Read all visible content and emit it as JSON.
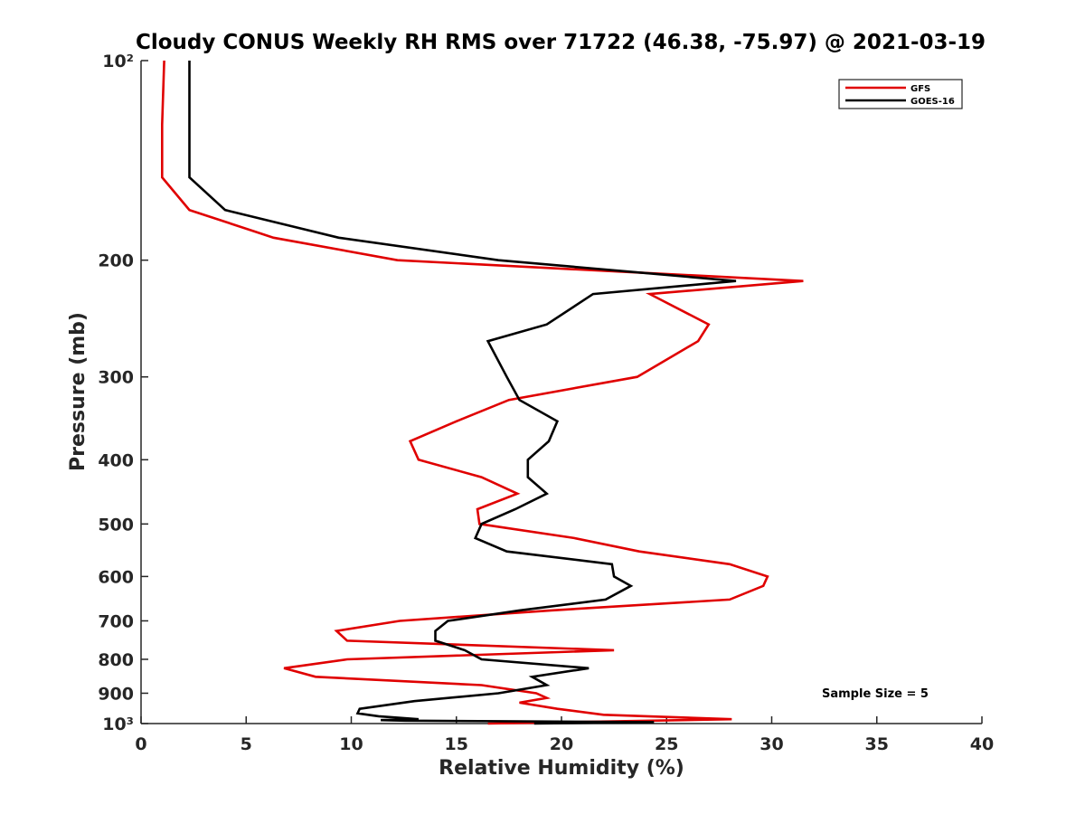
{
  "chart_data": {
    "type": "line",
    "title": "Cloudy CONUS Weekly RH RMS over 71722 (46.38, -75.97) @ 2021-03-19",
    "xlabel": "Relative Humidity (%)",
    "ylabel": "Pressure (mb)",
    "xlim": [
      0,
      40
    ],
    "ylim": [
      100,
      1000
    ],
    "yscale": "log",
    "yreversed": true,
    "grid": false,
    "x_ticks": [
      0,
      5,
      10,
      15,
      20,
      25,
      30,
      35,
      40
    ],
    "x_tick_labels": [
      "0",
      "5",
      "10",
      "15",
      "20",
      "25",
      "30",
      "35",
      "40"
    ],
    "y_ticks": [
      100,
      200,
      300,
      400,
      500,
      600,
      700,
      800,
      900,
      1000
    ],
    "y_tick_labels": [
      "10²",
      "200",
      "300",
      "400",
      "500",
      "600",
      "700",
      "800",
      "900",
      "10³"
    ],
    "legend": {
      "position": "top-right",
      "entries": [
        "GFS",
        "GOES-16"
      ]
    },
    "annotation": "Sample Size = 5",
    "series": [
      {
        "name": "GFS",
        "color": "#e00000",
        "points": [
          [
            1.1,
            100
          ],
          [
            1.0,
            125
          ],
          [
            1.0,
            150
          ],
          [
            2.3,
            168
          ],
          [
            6.3,
            185
          ],
          [
            12.2,
            200
          ],
          [
            31.5,
            215
          ],
          [
            24.2,
            225
          ],
          [
            27.0,
            250
          ],
          [
            26.5,
            265
          ],
          [
            23.6,
            300
          ],
          [
            17.5,
            325
          ],
          [
            15.0,
            350
          ],
          [
            12.8,
            375
          ],
          [
            13.2,
            400
          ],
          [
            16.2,
            425
          ],
          [
            17.9,
            450
          ],
          [
            16.0,
            475
          ],
          [
            16.1,
            500
          ],
          [
            20.6,
            525
          ],
          [
            23.7,
            550
          ],
          [
            28.0,
            575
          ],
          [
            29.8,
            600
          ],
          [
            29.6,
            620
          ],
          [
            28.0,
            650
          ],
          [
            19.5,
            675
          ],
          [
            12.3,
            700
          ],
          [
            9.3,
            725
          ],
          [
            9.8,
            750
          ],
          [
            22.5,
            775
          ],
          [
            9.8,
            800
          ],
          [
            6.8,
            825
          ],
          [
            8.3,
            850
          ],
          [
            16.2,
            875
          ],
          [
            18.8,
            900
          ],
          [
            19.3,
            915
          ],
          [
            18.0,
            930
          ],
          [
            19.8,
            950
          ],
          [
            22.0,
            970
          ],
          [
            28.1,
            985
          ],
          [
            16.5,
            1000
          ]
        ]
      },
      {
        "name": "GOES-16",
        "color": "#000000",
        "points": [
          [
            2.3,
            100
          ],
          [
            2.3,
            125
          ],
          [
            2.3,
            150
          ],
          [
            4.0,
            168
          ],
          [
            9.4,
            185
          ],
          [
            17.0,
            200
          ],
          [
            28.3,
            215
          ],
          [
            21.5,
            225
          ],
          [
            19.3,
            250
          ],
          [
            16.5,
            265
          ],
          [
            17.4,
            300
          ],
          [
            18.0,
            325
          ],
          [
            19.8,
            350
          ],
          [
            19.4,
            375
          ],
          [
            18.4,
            400
          ],
          [
            18.4,
            425
          ],
          [
            19.3,
            450
          ],
          [
            17.8,
            475
          ],
          [
            16.2,
            500
          ],
          [
            15.9,
            525
          ],
          [
            17.4,
            550
          ],
          [
            22.4,
            575
          ],
          [
            22.5,
            600
          ],
          [
            23.3,
            620
          ],
          [
            22.1,
            650
          ],
          [
            18.0,
            675
          ],
          [
            14.6,
            700
          ],
          [
            14.0,
            725
          ],
          [
            14.0,
            750
          ],
          [
            15.4,
            775
          ],
          [
            16.2,
            800
          ],
          [
            21.3,
            825
          ],
          [
            18.6,
            850
          ],
          [
            19.3,
            875
          ],
          [
            17.0,
            900
          ],
          [
            13.0,
            925
          ],
          [
            10.4,
            950
          ],
          [
            10.3,
            965
          ],
          [
            11.3,
            975
          ],
          [
            13.2,
            985
          ],
          [
            11.4,
            988
          ],
          [
            12.6,
            990
          ],
          [
            24.4,
            995
          ],
          [
            18.7,
            1000
          ]
        ]
      }
    ]
  }
}
